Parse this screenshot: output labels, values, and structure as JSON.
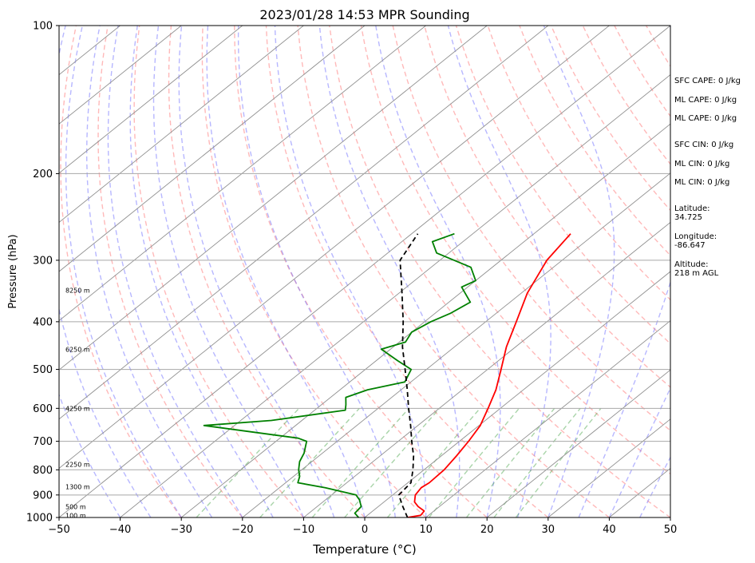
{
  "chart_data": {
    "type": "line",
    "title": "2023/01/28 14:53 MPR Sounding",
    "xlabel": "Temperature (°C)",
    "ylabel": "Pressure (hPa)",
    "xlim": [
      -50,
      50
    ],
    "ylim": [
      1000,
      100
    ],
    "y_scale": "log",
    "x_ticks": [
      "−50",
      "−40",
      "−30",
      "−20",
      "−10",
      "0",
      "10",
      "20",
      "30",
      "40",
      "50"
    ],
    "y_ticks": [
      "100",
      "200",
      "300",
      "400",
      "500",
      "600",
      "700",
      "800",
      "900",
      "1000"
    ],
    "grid": true,
    "height_labels": [
      "8250 m",
      "6250 m",
      "4250 m",
      "2250 m",
      "1300 m",
      "500 m",
      "100 m"
    ],
    "side_text": {
      "sfc_cape": "SFC CAPE: 0 J/kg",
      "ml_cape_1": "ML CAPE: 0 J/kg",
      "ml_cape_2": "ML CAPE: 0 J/kg",
      "sfc_cin": "SFC CIN: 0 J/kg",
      "ml_cin_1": "ML CIN: 0 J/kg",
      "ml_cin_2": "ML CIN: 0 J/kg",
      "latitude_label": "Latitude:",
      "latitude_value": "34.725",
      "longitude_label": "Longitude:",
      "longitude_value": "-86.647",
      "altitude_label": "Altitude:",
      "altitude_value": "218 m AGL"
    },
    "series": [
      {
        "color": "#ff0000",
        "values": [
          [
            1000,
            7.0
          ],
          [
            990,
            8.7
          ],
          [
            970,
            8.4
          ],
          [
            950,
            6.5
          ],
          [
            930,
            5.0
          ],
          [
            900,
            3.7
          ],
          [
            870,
            3.2
          ],
          [
            850,
            3.5
          ],
          [
            800,
            3.3
          ],
          [
            750,
            2.5
          ],
          [
            700,
            1.5
          ],
          [
            650,
            0.2
          ],
          [
            600,
            -2.0
          ],
          [
            550,
            -4.5
          ],
          [
            500,
            -7.8
          ],
          [
            450,
            -11.5
          ],
          [
            400,
            -15.0
          ],
          [
            350,
            -19.0
          ],
          [
            300,
            -22.5
          ],
          [
            265,
            -24.0
          ]
        ]
      },
      {
        "color": "#008000",
        "values": [
          [
            1000,
            -1.0
          ],
          [
            980,
            -2.5
          ],
          [
            950,
            -2.8
          ],
          [
            920,
            -4.5
          ],
          [
            900,
            -6.0
          ],
          [
            870,
            -12.5
          ],
          [
            850,
            -18.0
          ],
          [
            825,
            -19.0
          ],
          [
            800,
            -20.5
          ],
          [
            770,
            -22.0
          ],
          [
            740,
            -23.0
          ],
          [
            700,
            -25.0
          ],
          [
            690,
            -27.0
          ],
          [
            650,
            -45.0
          ],
          [
            635,
            -35.0
          ],
          [
            605,
            -25.0
          ],
          [
            590,
            -26.0
          ],
          [
            570,
            -27.5
          ],
          [
            550,
            -25.5
          ],
          [
            530,
            -21.0
          ],
          [
            500,
            -22.5
          ],
          [
            480,
            -26.5
          ],
          [
            455,
            -31.5
          ],
          [
            440,
            -29.0
          ],
          [
            420,
            -30.0
          ],
          [
            400,
            -29.0
          ],
          [
            385,
            -27.5
          ],
          [
            365,
            -26.5
          ],
          [
            340,
            -31.0
          ],
          [
            330,
            -30.0
          ],
          [
            310,
            -33.5
          ],
          [
            290,
            -42.0
          ],
          [
            275,
            -45.0
          ],
          [
            265,
            -43.0
          ]
        ]
      },
      {
        "color": "#000000",
        "dashed": true,
        "values": [
          [
            1000,
            7.0
          ],
          [
            950,
            4.0
          ],
          [
            900,
            1.0
          ],
          [
            850,
            0.5
          ],
          [
            800,
            -1.8
          ],
          [
            750,
            -4.5
          ],
          [
            700,
            -7.8
          ],
          [
            650,
            -11.2
          ],
          [
            600,
            -15.0
          ],
          [
            550,
            -19.0
          ],
          [
            500,
            -23.5
          ],
          [
            450,
            -28.5
          ],
          [
            400,
            -33.5
          ],
          [
            350,
            -39.5
          ],
          [
            300,
            -46.5
          ],
          [
            265,
            -49.0
          ]
        ]
      }
    ]
  }
}
